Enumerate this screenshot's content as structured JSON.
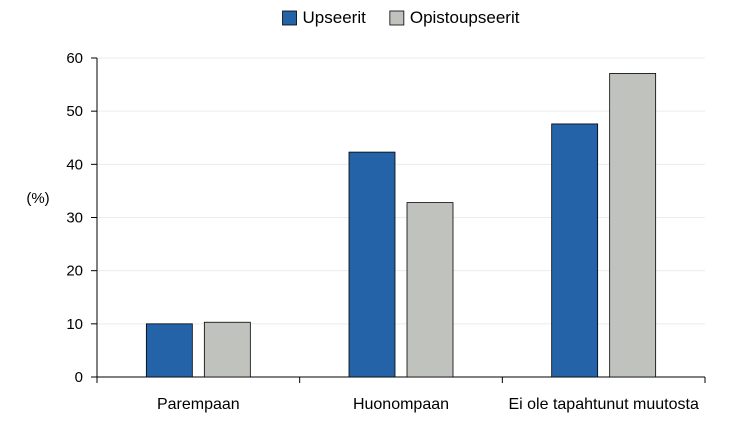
{
  "chart_data": {
    "type": "bar",
    "categories": [
      "Parempaan",
      "Huonompaan",
      "Ei ole tapahtunut muutosta"
    ],
    "series": [
      {
        "name": "Upseerit",
        "values": [
          10,
          42.3,
          47.6
        ],
        "color": "#2563A8"
      },
      {
        "name": "Opistoupseerit",
        "values": [
          10.3,
          32.8,
          57.1
        ],
        "color": "#C0C2BD"
      }
    ],
    "ylabel": "(%)",
    "ylim": [
      0,
      60
    ],
    "yticks": [
      0,
      10,
      20,
      30,
      40,
      50,
      60
    ],
    "grid": true,
    "legend_position": "top-center"
  }
}
